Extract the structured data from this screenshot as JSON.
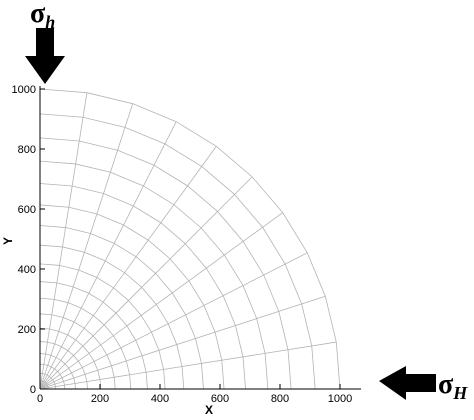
{
  "loads": {
    "vertical": {
      "symbol": "σ",
      "subscript": "h",
      "direction": "down"
    },
    "horizontal": {
      "symbol": "σ",
      "subscript": "H",
      "direction": "left"
    }
  },
  "axes": {
    "x": {
      "label": "X",
      "range": [
        0,
        1000
      ],
      "ticks": [
        "0",
        "200",
        "400",
        "600",
        "800",
        "1000"
      ]
    },
    "y": {
      "label": "Y",
      "range": [
        0,
        1000
      ],
      "ticks": [
        "0",
        "200",
        "400",
        "600",
        "800",
        "1000"
      ]
    }
  },
  "mesh": {
    "type": "quarter-circle radial mesh",
    "outer_radius": 1000,
    "radial_lines": 11,
    "concentric_rings": 19,
    "colors": {
      "mesh": "#b4b4b4",
      "axes": "#000000",
      "arrows": "#000000"
    }
  }
}
